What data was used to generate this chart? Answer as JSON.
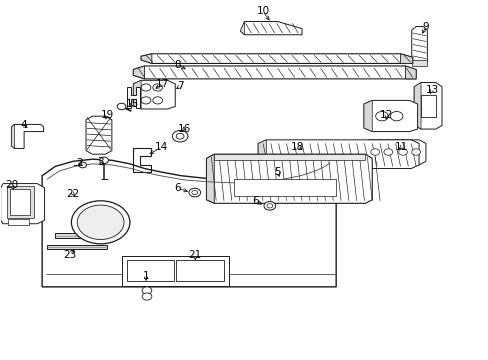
{
  "bg": "#ffffff",
  "lc": "#1a1a1a",
  "figsize": [
    4.89,
    3.6
  ],
  "dpi": 100,
  "parts": {
    "label_positions": {
      "10": [
        0.538,
        0.038,
        0.56,
        0.072
      ],
      "9": [
        0.87,
        0.082,
        0.865,
        0.11
      ],
      "8": [
        0.368,
        0.188,
        0.395,
        0.205
      ],
      "13": [
        0.882,
        0.258,
        0.875,
        0.278
      ],
      "12": [
        0.79,
        0.328,
        0.785,
        0.34
      ],
      "11": [
        0.82,
        0.42,
        0.808,
        0.428
      ],
      "7": [
        0.36,
        0.248,
        0.35,
        0.258
      ],
      "17": [
        0.328,
        0.24,
        0.31,
        0.255
      ],
      "15": [
        0.268,
        0.3,
        0.258,
        0.315
      ],
      "19": [
        0.215,
        0.328,
        0.22,
        0.34
      ],
      "16": [
        0.374,
        0.368,
        0.368,
        0.378
      ],
      "18": [
        0.604,
        0.418,
        0.625,
        0.428
      ],
      "14": [
        0.328,
        0.42,
        0.302,
        0.438
      ],
      "5": [
        0.565,
        0.488,
        0.572,
        0.5
      ],
      "4": [
        0.05,
        0.358,
        0.062,
        0.37
      ],
      "2": [
        0.168,
        0.462,
        0.172,
        0.468
      ],
      "3": [
        0.208,
        0.46,
        0.212,
        0.468
      ],
      "6a": [
        0.368,
        0.532,
        0.388,
        0.538
      ],
      "6b": [
        0.53,
        0.568,
        0.548,
        0.575
      ],
      "20": [
        0.025,
        0.525,
        0.03,
        0.538
      ],
      "22": [
        0.15,
        0.548,
        0.155,
        0.56
      ],
      "1": [
        0.298,
        0.775,
        0.3,
        0.79
      ],
      "21": [
        0.395,
        0.722,
        0.398,
        0.732
      ],
      "23": [
        0.148,
        0.718,
        0.155,
        0.705
      ]
    }
  }
}
